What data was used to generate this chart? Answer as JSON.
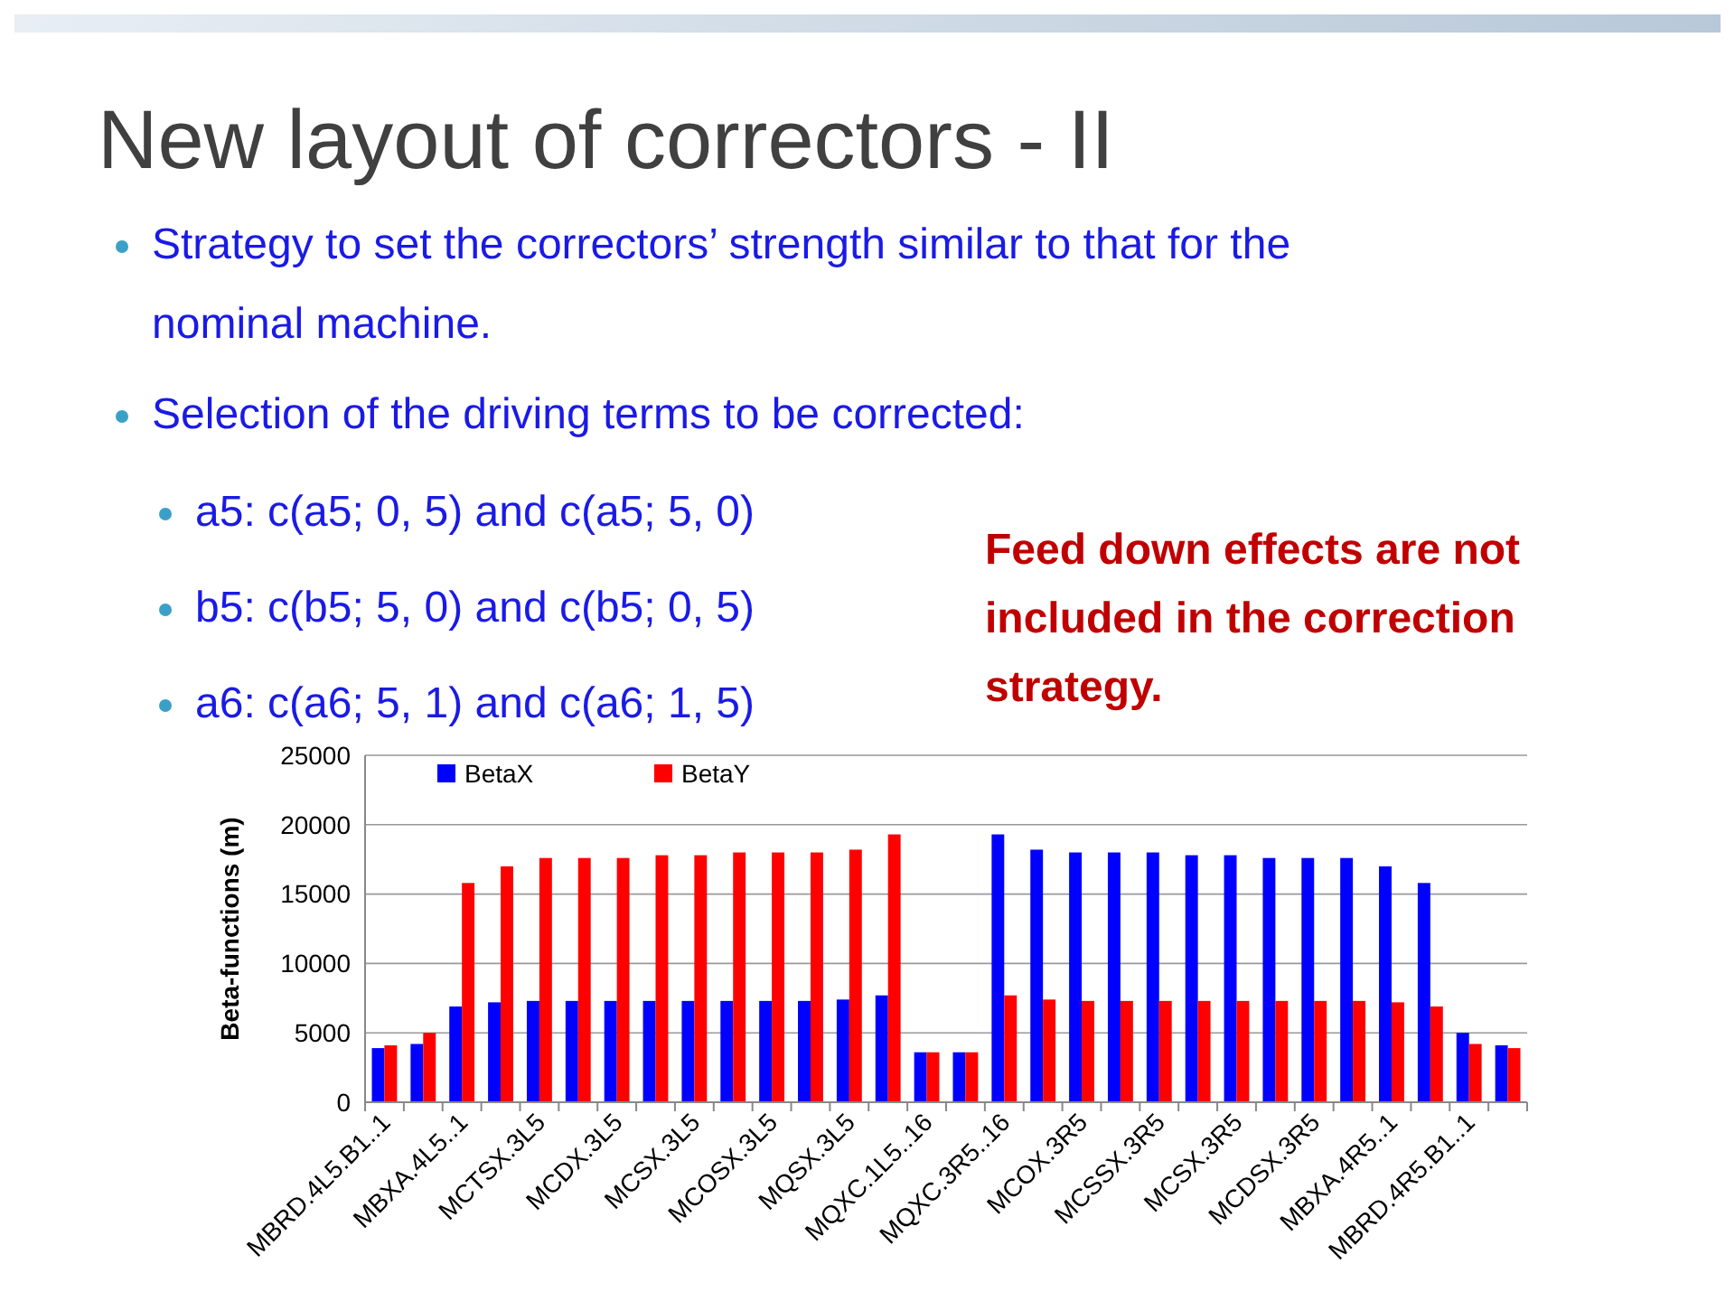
{
  "chart_data": {
    "type": "bar",
    "title": "New layout of correctors - II",
    "annotations": [
      "Strategy to set the correctors’ strength similar to that for the nominal machine.",
      "Selection of the driving terms to be corrected:",
      "a5: c(a5; 0, 5) and c(a5; 5, 0)",
      "b5: c(b5; 5, 0) and c(b5; 0, 5)",
      "a6: c(a6; 5, 1) and c(a6; 1, 5)",
      "Feed down effects are not included in the correction strategy."
    ],
    "ylabel": "Beta-functions (m)",
    "categories": [
      "MBRD.4L5.B1..1",
      null,
      "MBXA.4L5..1",
      null,
      "MCTSX.3L5",
      null,
      "MCDX.3L5",
      null,
      "MCSX.3L5",
      null,
      "MCOSX.3L5",
      null,
      "MQSX.3L5",
      null,
      "MQXC.1L5..16",
      null,
      "MQXC.3R5..16",
      null,
      "MCOX.3R5",
      null,
      "MCSSX.3R5",
      null,
      "MCSX.3R5",
      null,
      "MCDSX.3R5",
      null,
      "MBXA.4R5..1",
      null,
      "MBRD.4R5.B1..1",
      null
    ],
    "series": [
      {
        "name": "BetaX",
        "color": "#0000ff",
        "values": [
          3900,
          4200,
          6900,
          7200,
          7300,
          7300,
          7300,
          7300,
          7300,
          7300,
          7300,
          7300,
          7400,
          7700,
          3600,
          3600,
          19300,
          18200,
          18000,
          18000,
          18000,
          17800,
          17800,
          17600,
          17600,
          17600,
          17000,
          15800,
          5000,
          4100
        ]
      },
      {
        "name": "BetaY",
        "color": "#ff0000",
        "values": [
          4100,
          5000,
          15800,
          17000,
          17600,
          17600,
          17600,
          17800,
          17800,
          18000,
          18000,
          18000,
          18200,
          19300,
          3600,
          3600,
          7700,
          7400,
          7300,
          7300,
          7300,
          7300,
          7300,
          7300,
          7300,
          7300,
          7200,
          6900,
          4200,
          3900
        ]
      }
    ],
    "ylim": [
      0,
      25000
    ],
    "yticks": [
      0,
      5000,
      10000,
      15000,
      20000,
      25000
    ],
    "grid": "y",
    "legend": "top left"
  }
}
